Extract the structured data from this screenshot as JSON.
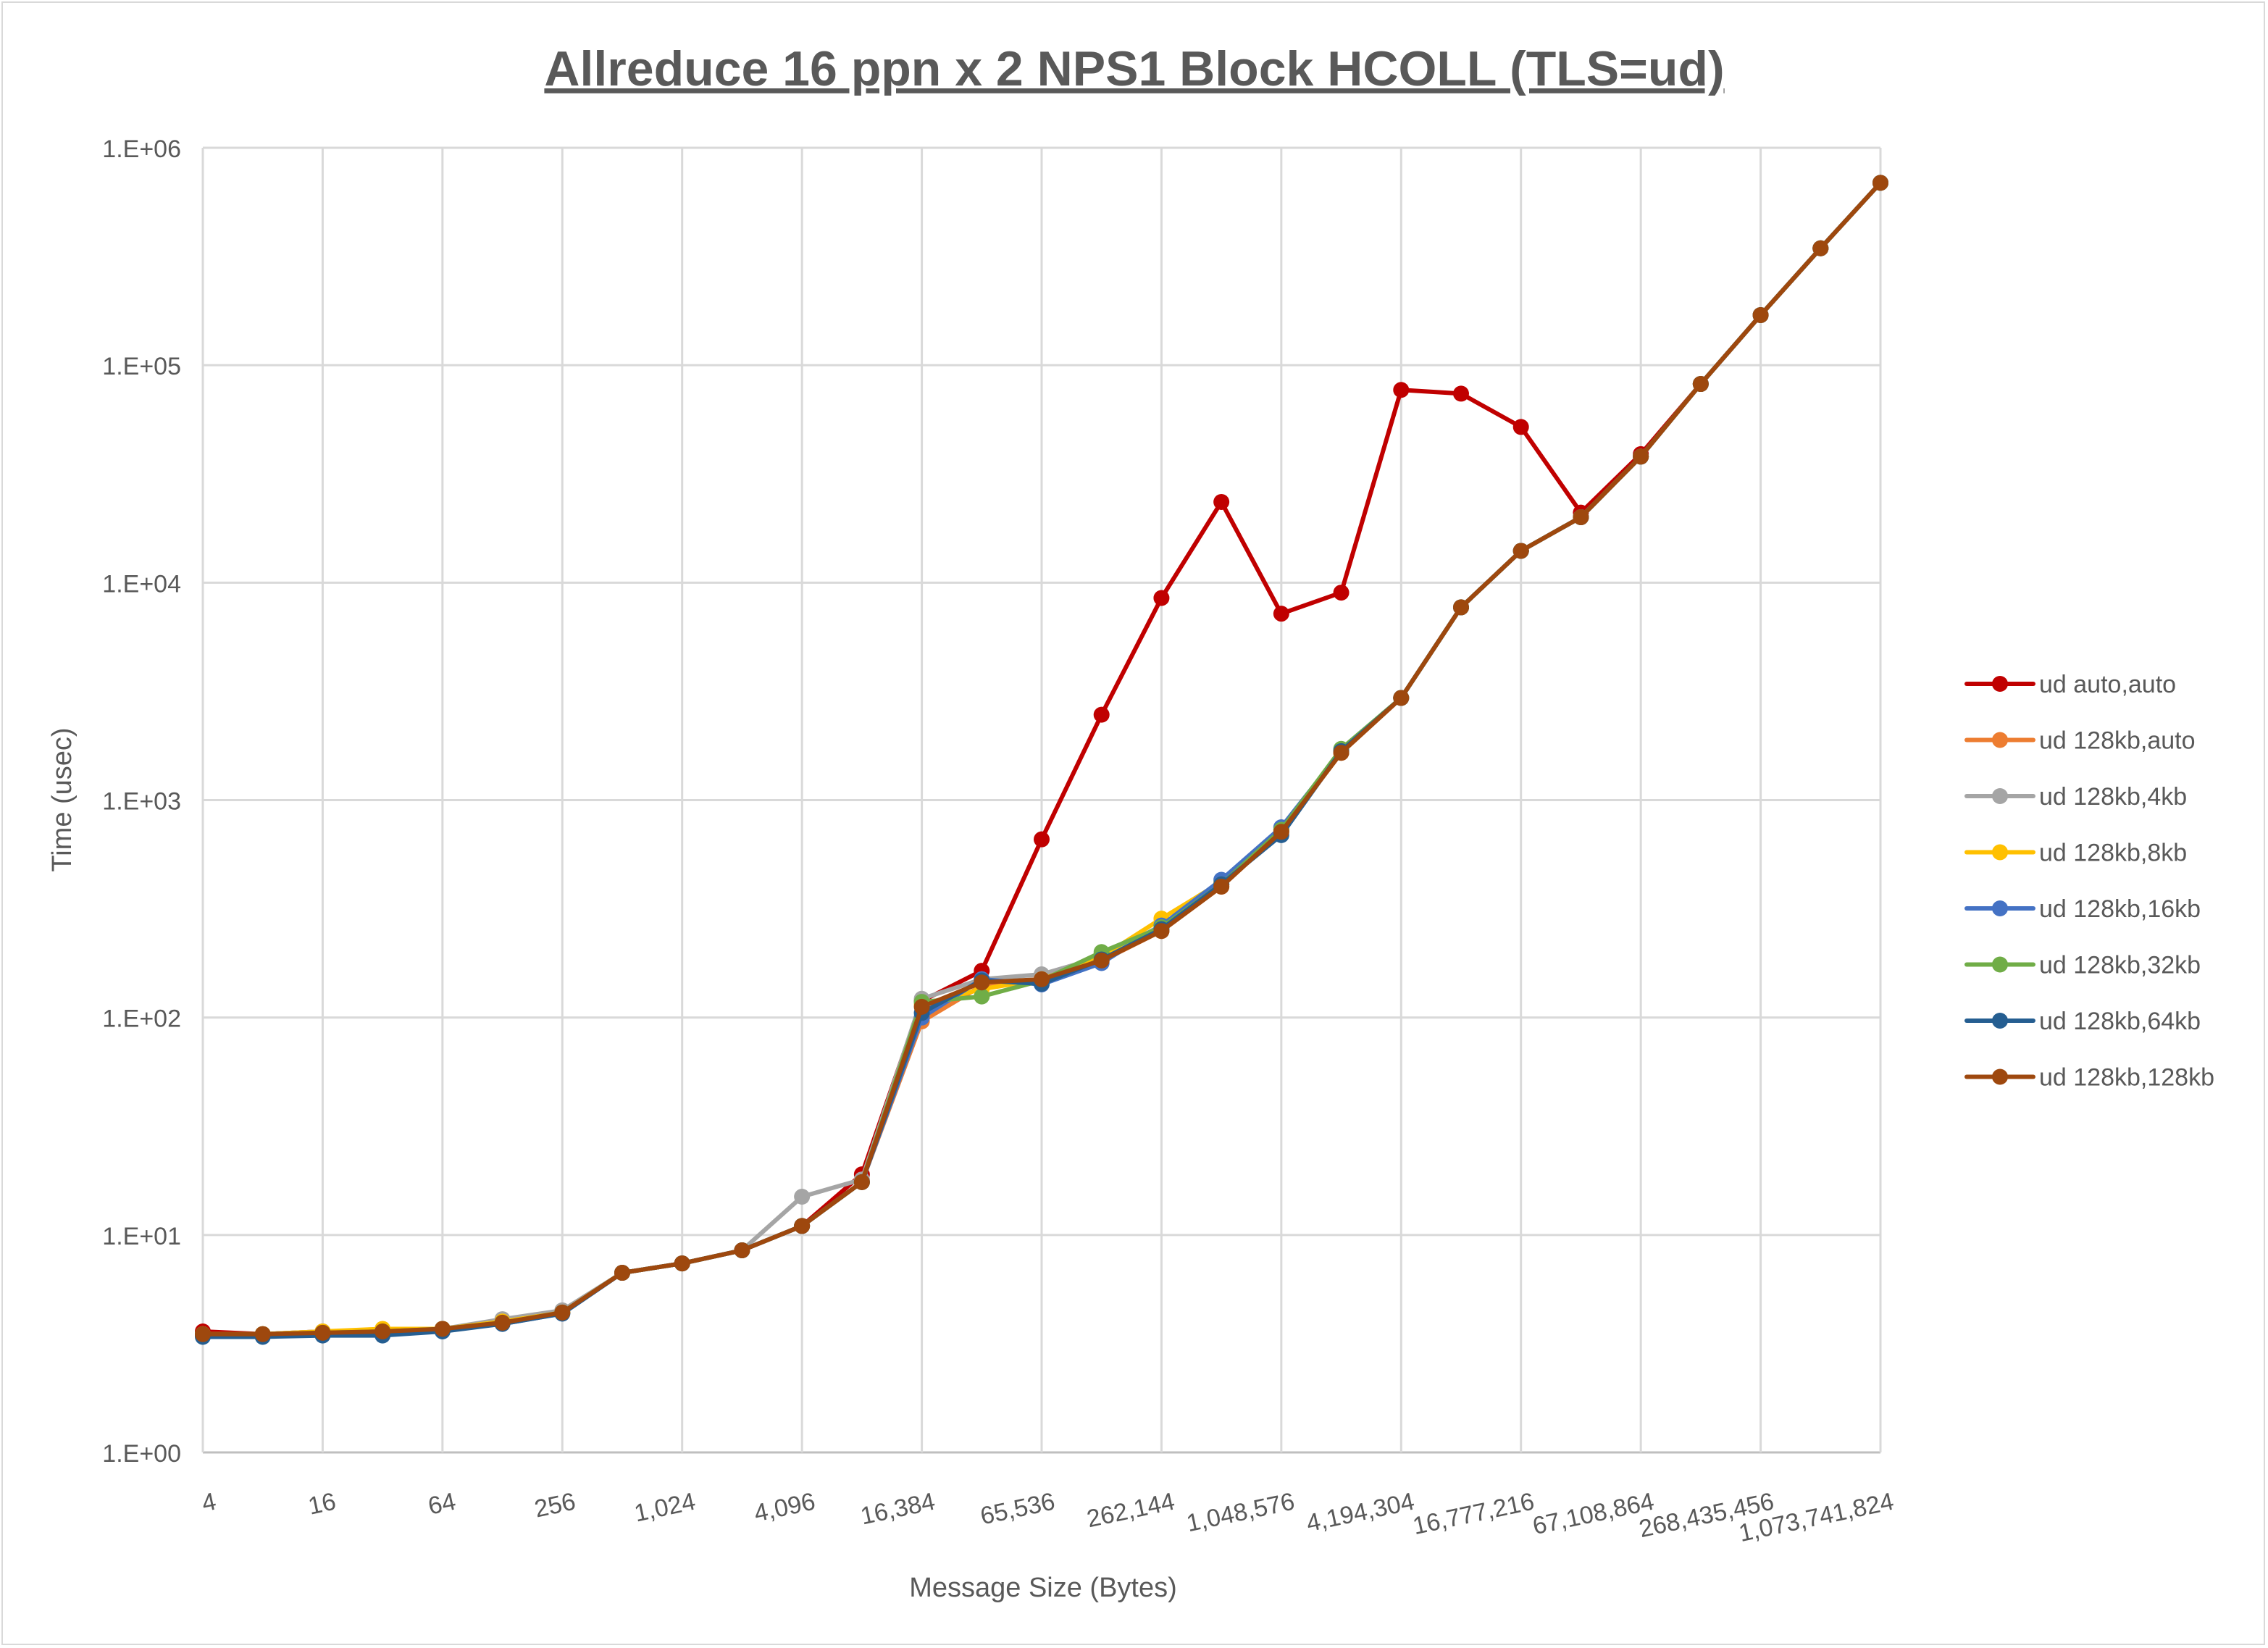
{
  "chart_data": {
    "type": "line",
    "title": "Allreduce 16 ppn x 2 NPS1 Block HCOLL (TLS=ud)",
    "xlabel": "Message Size (Bytes)",
    "ylabel": "Time (usec)",
    "y_scale": "log",
    "ylim": [
      1,
      1000000
    ],
    "y_tick_labels": [
      "1.E+00",
      "1.E+01",
      "1.E+02",
      "1.E+03",
      "1.E+04",
      "1.E+05",
      "1.E+06"
    ],
    "x_scale": "log2 category",
    "x": [
      4,
      8,
      16,
      32,
      64,
      128,
      256,
      512,
      1024,
      2048,
      4096,
      8192,
      16384,
      32768,
      65536,
      131072,
      262144,
      524288,
      1048576,
      2097152,
      4194304,
      8388608,
      16777216,
      33554432,
      67108864,
      134217728,
      268435456,
      536870912,
      1073741824
    ],
    "x_tick_labels": [
      "4",
      "16",
      "64",
      "256",
      "1,024",
      "4,096",
      "16,384",
      "65,536",
      "262,144",
      "1,048,576",
      "4,194,304",
      "16,777,216",
      "67,108,864",
      "268,435,456",
      "1,073,741,824"
    ],
    "grid": true,
    "legend_position": "right",
    "series": [
      {
        "name": "ud auto,auto",
        "color": "#c00000",
        "values": [
          3.6,
          3.5,
          3.6,
          3.6,
          3.7,
          4.0,
          4.4,
          6.7,
          7.4,
          8.5,
          11,
          19,
          119,
          164,
          660,
          2470,
          8500,
          23500,
          7200,
          9000,
          77000,
          74000,
          52000,
          21000,
          39000,
          82000,
          170000,
          345000,
          690000
        ]
      },
      {
        "name": "ud 128kb,auto",
        "color": "#ed7d31",
        "values": [
          3.5,
          3.5,
          3.55,
          3.6,
          3.7,
          3.95,
          4.4,
          6.7,
          7.4,
          8.5,
          11,
          17.5,
          96,
          140,
          148,
          182,
          250,
          400,
          715,
          1650,
          2950,
          7700,
          14000,
          20000,
          38000,
          82000,
          170000,
          345000,
          690000
        ]
      },
      {
        "name": "ud 128kb,4kb",
        "color": "#a5a5a5",
        "values": [
          3.5,
          3.5,
          3.6,
          3.6,
          3.7,
          4.1,
          4.5,
          6.7,
          7.4,
          8.5,
          15,
          18,
          122,
          150,
          158,
          190,
          265,
          410,
          730,
          1680,
          2950,
          7700,
          14000,
          20000,
          38000,
          82000,
          170000,
          345000,
          690000
        ]
      },
      {
        "name": "ud 128kb,8kb",
        "color": "#ffc000",
        "values": [
          3.5,
          3.5,
          3.6,
          3.7,
          3.7,
          4.0,
          4.4,
          6.7,
          7.4,
          8.5,
          11,
          17.5,
          115,
          135,
          150,
          190,
          285,
          420,
          730,
          1680,
          2950,
          7700,
          14000,
          20000,
          38000,
          82000,
          170000,
          345000,
          690000
        ]
      },
      {
        "name": "ud 128kb,16kb",
        "color": "#4472c4",
        "values": [
          3.45,
          3.45,
          3.5,
          3.5,
          3.65,
          3.9,
          4.35,
          6.7,
          7.4,
          8.5,
          11,
          17.5,
          100,
          150,
          142,
          178,
          265,
          430,
          750,
          1680,
          2950,
          7700,
          14000,
          20000,
          38000,
          82000,
          170000,
          345000,
          690000
        ]
      },
      {
        "name": "ud 128kb,32kb",
        "color": "#70ad47",
        "values": [
          3.5,
          3.5,
          3.55,
          3.6,
          3.7,
          3.95,
          4.4,
          6.7,
          7.4,
          8.5,
          11,
          17.5,
          118,
          125,
          148,
          200,
          260,
          410,
          730,
          1720,
          2950,
          7700,
          14000,
          20000,
          38000,
          82000,
          170000,
          345000,
          690000
        ]
      },
      {
        "name": "ud 128kb,64kb",
        "color": "#255e91",
        "values": [
          3.4,
          3.4,
          3.45,
          3.45,
          3.6,
          3.9,
          4.35,
          6.7,
          7.4,
          8.5,
          11,
          17.5,
          105,
          148,
          143,
          185,
          255,
          410,
          690,
          1680,
          2950,
          7700,
          14000,
          20000,
          38000,
          82000,
          170000,
          345000,
          690000
        ]
      },
      {
        "name": "ud 128kb,128kb",
        "color": "#9e480e",
        "values": [
          3.5,
          3.5,
          3.55,
          3.6,
          3.7,
          3.95,
          4.4,
          6.7,
          7.4,
          8.5,
          11,
          17.5,
          112,
          145,
          150,
          183,
          250,
          400,
          715,
          1650,
          2950,
          7700,
          14000,
          20000,
          38000,
          82000,
          170000,
          345000,
          690000
        ]
      }
    ]
  }
}
